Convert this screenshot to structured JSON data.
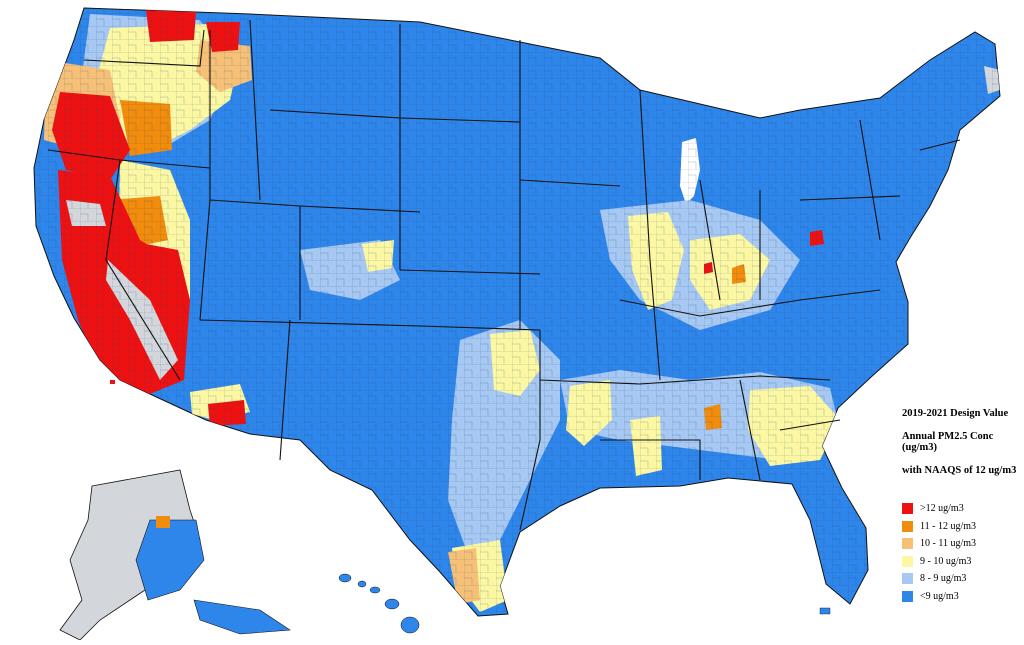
{
  "legend": {
    "title_line1": "2019-2021 Design Value",
    "title_line2": "Annual PM2.5 Conc (ug/m3)",
    "title_line3": "with NAAQS of 12 ug/m3",
    "items": [
      {
        "label": ">12 ug/m3",
        "color": "#ee1111"
      },
      {
        "label": "11 - 12 ug/m3",
        "color": "#f28c0c"
      },
      {
        "label": "10 - 11 ug/m3",
        "color": "#f6c177"
      },
      {
        "label": "9 - 10 ug/m3",
        "color": "#fbf7a2"
      },
      {
        "label": "8 - 9 ug/m3",
        "color": "#a6c8f2"
      },
      {
        "label": "<9 ug/m3",
        "color": "#2f86ea"
      }
    ]
  },
  "colors": {
    "no_data": "#d3d7dc",
    "border": "#111111",
    "county_line": "#1a3f78"
  }
}
